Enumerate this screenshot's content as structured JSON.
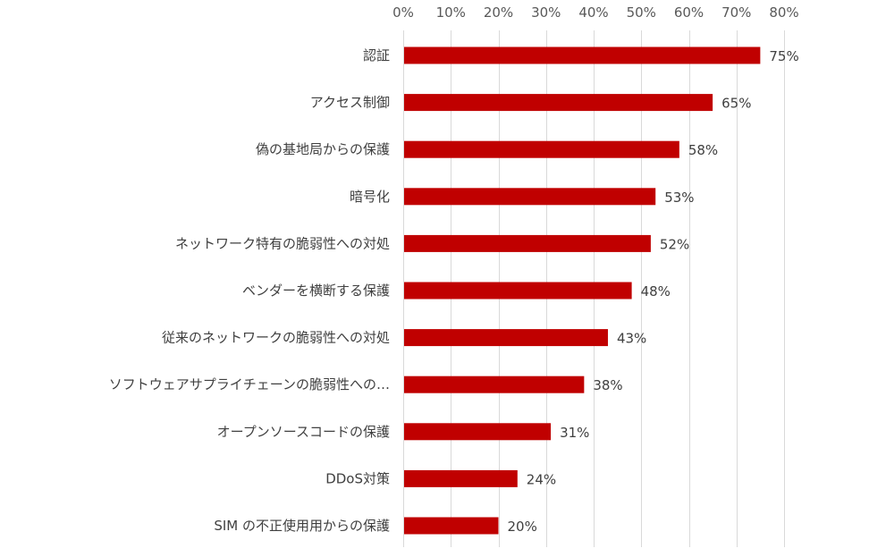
{
  "chart_data": {
    "type": "bar",
    "orientation": "horizontal",
    "categories": [
      "認証",
      "アクセス制御",
      "偽の基地局からの保護",
      "暗号化",
      "ネットワーク特有の脆弱性への対処",
      "ベンダーを横断する保護",
      "従来のネットワークの脆弱性への対処",
      "ソフトウェアサプライチェーンの脆弱性への…",
      "オープンソースコードの保護",
      "DDoS対策",
      "SIM の不正使用用からの保護"
    ],
    "values": [
      75,
      65,
      58,
      53,
      52,
      48,
      43,
      38,
      31,
      24,
      20
    ],
    "value_labels": [
      "75%",
      "65%",
      "58%",
      "53%",
      "52%",
      "48%",
      "43%",
      "38%",
      "31%",
      "24%",
      "20%"
    ],
    "xlim": [
      0,
      80
    ],
    "x_ticks": [
      0,
      10,
      20,
      30,
      40,
      50,
      60,
      70,
      80
    ],
    "x_tick_labels": [
      "0%",
      "10%",
      "20%",
      "30%",
      "40%",
      "50%",
      "60%",
      "70%",
      "80%"
    ],
    "x_axis_position": "top",
    "grid": true,
    "legend": "none",
    "bar_color": "#c00000"
  }
}
